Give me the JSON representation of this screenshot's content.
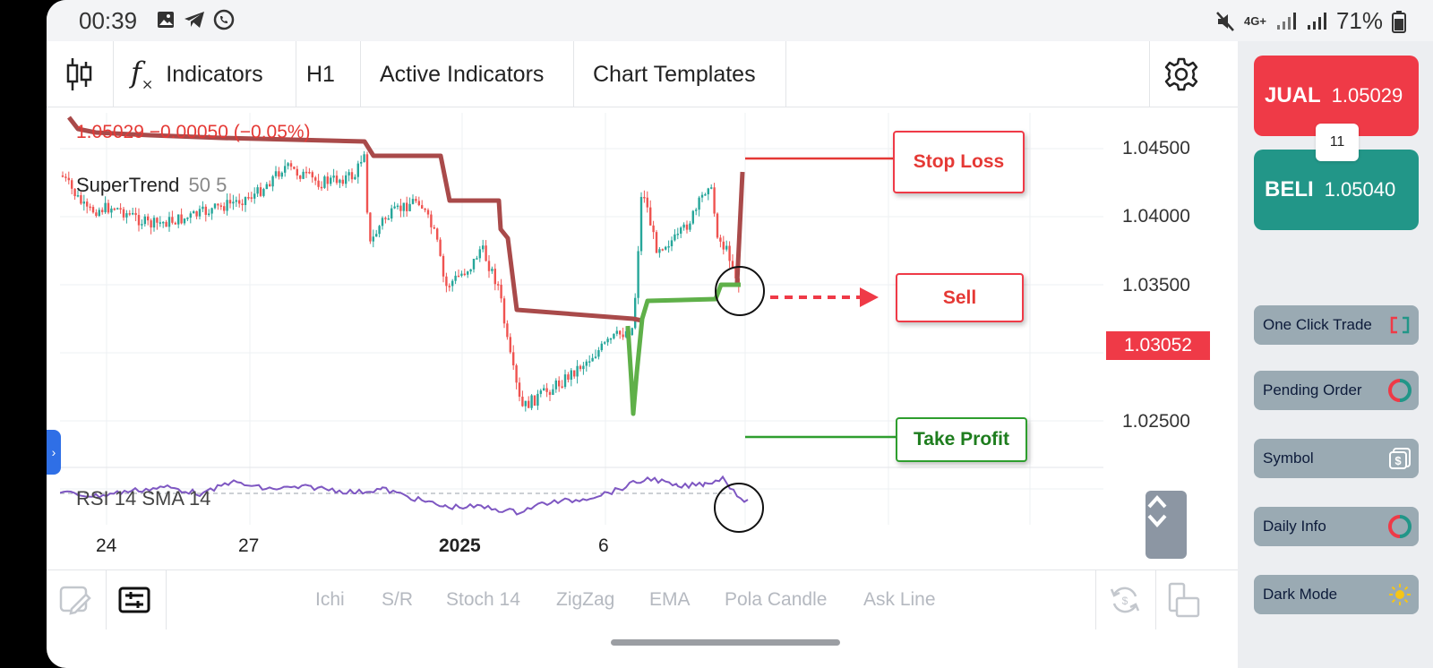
{
  "status_bar": {
    "time": "00:39",
    "network": "4G+",
    "battery": "71%",
    "icons": [
      "gallery-icon",
      "telegram-icon",
      "whatsapp-icon",
      "mute-icon",
      "signal-icon",
      "battery-icon"
    ]
  },
  "toolbar": {
    "indicators_label": "Indicators",
    "timeframe_label": "H1",
    "active_indicators_label": "Active Indicators",
    "chart_templates_label": "Chart Templates"
  },
  "chart": {
    "price_change": "1.05029  −0.00050 (−0.05%)",
    "supertrend_label": "SuperTrend",
    "supertrend_params": "50 5",
    "rsi_label": "RSI 14 SMA 14",
    "y_ticks": [
      "1.04500",
      "1.04000",
      "1.03500",
      "1.02500"
    ],
    "current_price_label": "1.03052",
    "x_ticks": [
      "24",
      "27",
      "2025",
      "6"
    ],
    "annotations": {
      "stop_loss": "Stop Loss",
      "sell": "Sell",
      "take_profit": "Take Profit"
    },
    "colors": {
      "up_candle": "#26a69a",
      "down_candle": "#ef5350",
      "supertrend_down": "#a94a4a",
      "supertrend_up": "#4caf50",
      "rsi_line": "#7e57c2",
      "stop_loss_line": "#e53935",
      "take_profit_line": "#2e9e2e"
    }
  },
  "bottom_bar": {
    "items": [
      "Ichi",
      "S/R",
      "Stoch 14",
      "ZigZag",
      "EMA",
      "Pola Candle",
      "Ask Line"
    ]
  },
  "right_panel": {
    "sell_label": "JUAL",
    "sell_price": "1.05029",
    "spread": "11",
    "buy_label": "BELI",
    "buy_price": "1.05040",
    "one_click_trade": "One Click Trade",
    "pending_order": "Pending Order",
    "symbol": "Symbol",
    "daily_info": "Daily Info",
    "dark_mode": "Dark Mode",
    "sell_color": "#ef3a47",
    "buy_color": "#229688"
  }
}
